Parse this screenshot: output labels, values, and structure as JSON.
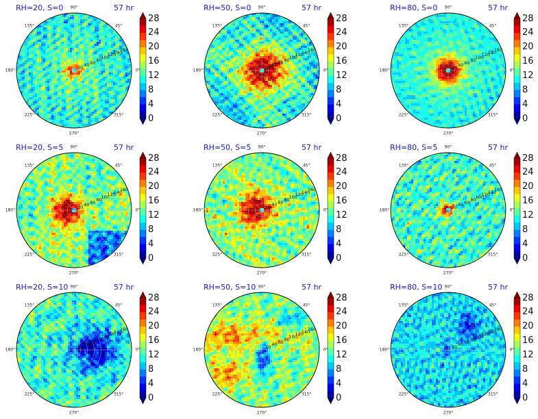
{
  "chart_data": {
    "type": "polar-contour-grid",
    "panels": [
      {
        "title": "RH=20, S=0",
        "time": "57 hr",
        "rh": 20,
        "shear": 0
      },
      {
        "title": "RH=50, S=0",
        "time": "57 hr",
        "rh": 50,
        "shear": 0
      },
      {
        "title": "RH=80, S=0",
        "time": "57 hr",
        "rh": 80,
        "shear": 0
      },
      {
        "title": "RH=20, S=5",
        "time": "57 hr",
        "rh": 20,
        "shear": 5
      },
      {
        "title": "RH=50, S=5",
        "time": "57 hr",
        "rh": 50,
        "shear": 5
      },
      {
        "title": "RH=80, S=5",
        "time": "57 hr",
        "rh": 80,
        "shear": 5
      },
      {
        "title": "RH=20, S=10",
        "time": "57 hr",
        "rh": 20,
        "shear": 10
      },
      {
        "title": "RH=50, S=10",
        "time": "57 hr",
        "rh": 50,
        "shear": 10
      },
      {
        "title": "RH=80, S=10",
        "time": "57 hr",
        "rh": 80,
        "shear": 10
      }
    ],
    "angle_labels": [
      "0°",
      "45°",
      "90°",
      "135°",
      "180°",
      "225°",
      "270°",
      "315°"
    ],
    "radial_labels": [
      "20",
      "40",
      "60",
      "80",
      "100",
      "120",
      "140",
      "160"
    ],
    "radial_max": 170,
    "colorbar": {
      "ticks": [
        "0",
        "4",
        "8",
        "12",
        "16",
        "20",
        "24",
        "28"
      ],
      "min": 0,
      "max": 28,
      "levels": 14,
      "colormap": "jet",
      "extend": "both"
    },
    "grid": true
  }
}
